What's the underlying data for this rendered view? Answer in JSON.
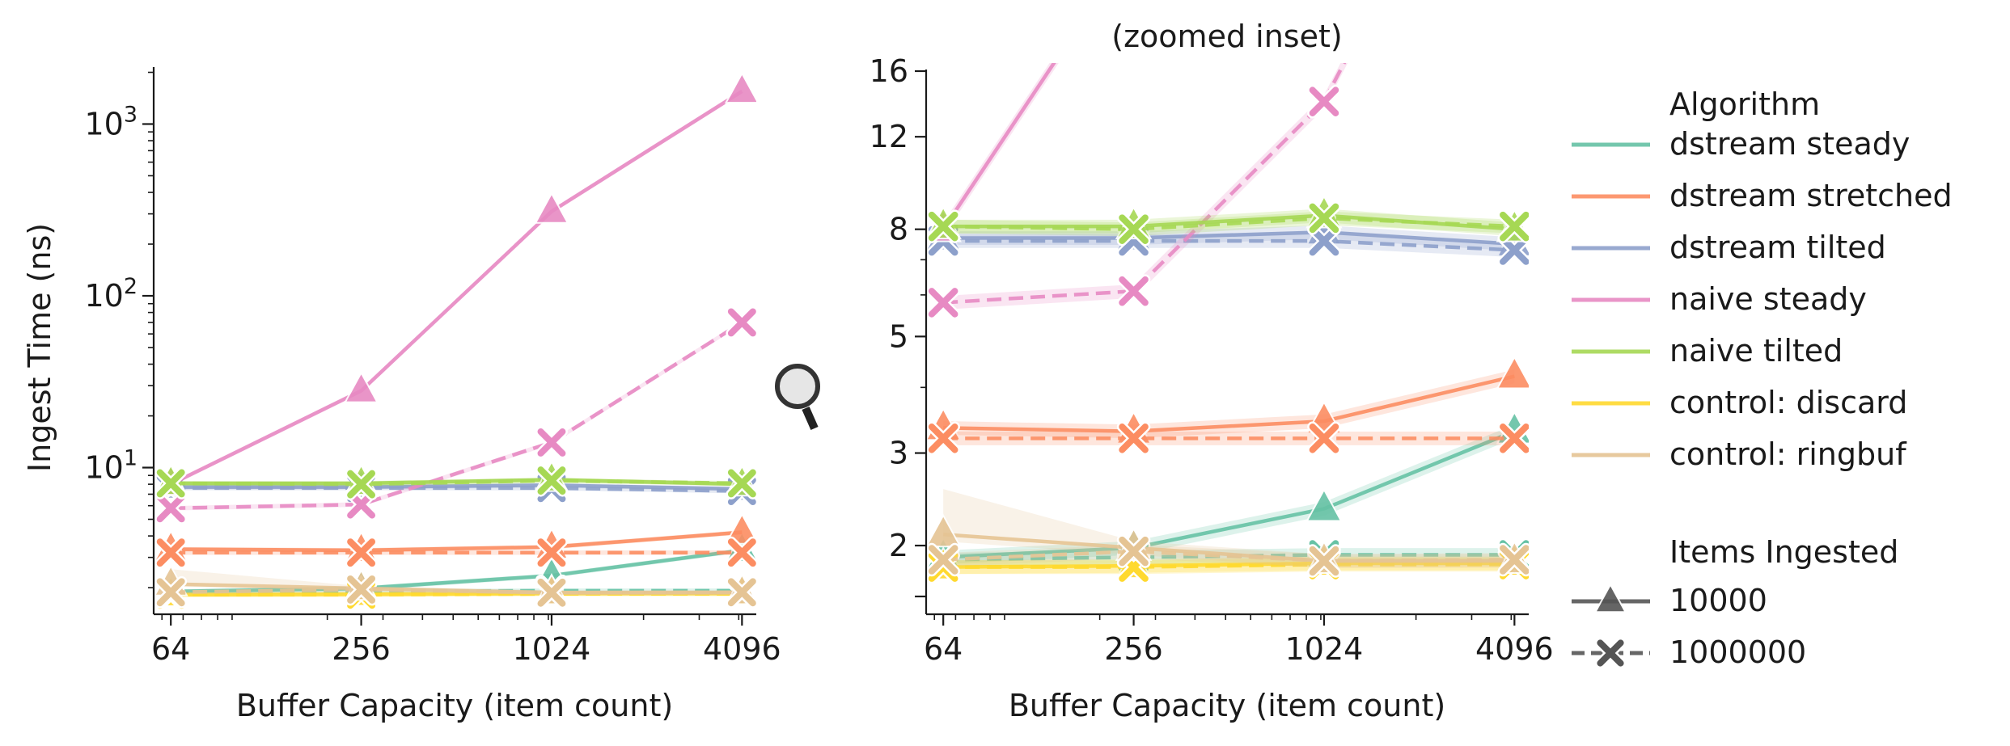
{
  "chart_data": [
    {
      "type": "line",
      "panel": "main",
      "title": "",
      "xlabel": "Buffer Capacity (item count)",
      "ylabel": "Ingest Time (ns)",
      "xscale": "log2",
      "yscale": "log10",
      "x": [
        64,
        256,
        1024,
        4096
      ],
      "x_tick_labels": [
        "64",
        "256",
        "1024",
        "4096"
      ],
      "y_tick_labels": [
        {
          "value": 10,
          "base": "10",
          "exp": "1"
        },
        {
          "value": 100,
          "base": "10",
          "exp": "2"
        },
        {
          "value": 1000,
          "base": "10",
          "exp": "3"
        }
      ],
      "ylim": [
        1.4,
        2100
      ],
      "series": [
        {
          "name": "dstream steady",
          "items": "10000",
          "values": [
            1.9,
            1.98,
            2.35,
            3.3
          ]
        },
        {
          "name": "dstream steady",
          "items": "1000000",
          "values": [
            1.88,
            1.9,
            1.92,
            1.92
          ]
        },
        {
          "name": "dstream stretched",
          "items": "10000",
          "values": [
            3.35,
            3.3,
            3.45,
            4.2
          ]
        },
        {
          "name": "dstream stretched",
          "items": "1000000",
          "values": [
            3.2,
            3.2,
            3.2,
            3.2
          ]
        },
        {
          "name": "dstream tilted",
          "items": "10000",
          "values": [
            7.7,
            7.7,
            7.9,
            7.5
          ]
        },
        {
          "name": "dstream tilted",
          "items": "1000000",
          "values": [
            7.6,
            7.6,
            7.6,
            7.3
          ]
        },
        {
          "name": "naive steady",
          "items": "10000",
          "values": [
            8.0,
            28.0,
            310,
            1550
          ]
        },
        {
          "name": "naive steady",
          "items": "1000000",
          "values": [
            5.8,
            6.1,
            14.0,
            70.0
          ]
        },
        {
          "name": "naive tilted",
          "items": "10000",
          "values": [
            8.1,
            8.1,
            8.5,
            8.0
          ]
        },
        {
          "name": "naive tilted",
          "items": "1000000",
          "values": [
            8.1,
            8.0,
            8.4,
            8.1
          ]
        },
        {
          "name": "control: discard",
          "items": "10000",
          "values": [
            1.82,
            1.83,
            1.85,
            1.85
          ]
        },
        {
          "name": "control: discard",
          "items": "1000000",
          "values": [
            1.82,
            1.82,
            1.84,
            1.84
          ]
        },
        {
          "name": "control: ringbuf",
          "items": "10000",
          "values": [
            2.1,
            1.98,
            1.87,
            1.87
          ]
        },
        {
          "name": "control: ringbuf",
          "items": "1000000",
          "values": [
            1.88,
            1.95,
            1.87,
            1.88
          ]
        }
      ]
    },
    {
      "type": "line",
      "panel": "inset",
      "title": "(zoomed inset)",
      "xlabel": "Buffer Capacity (item count)",
      "ylabel": "",
      "xscale": "log2",
      "yscale": "log",
      "x": [
        64,
        256,
        1024,
        4096
      ],
      "x_tick_labels": [
        "64",
        "256",
        "1024",
        "4096"
      ],
      "y_tick_labels": [
        "2",
        "3",
        "5",
        "8",
        "12",
        "16"
      ],
      "y_ticks": [
        2,
        3,
        5,
        8,
        12,
        16
      ],
      "ylim": [
        1.48,
        16
      ],
      "series_ref": "main"
    }
  ],
  "legend": {
    "position": "right",
    "algorithm_title": "Algorithm",
    "algorithms": [
      {
        "name": "dstream steady",
        "color": "#66c2a5"
      },
      {
        "name": "dstream stretched",
        "color": "#fc8d62"
      },
      {
        "name": "dstream tilted",
        "color": "#8da0cb"
      },
      {
        "name": "naive steady",
        "color": "#e78ac3"
      },
      {
        "name": "naive tilted",
        "color": "#a6d854"
      },
      {
        "name": "control: discard",
        "color": "#ffd92f"
      },
      {
        "name": "control: ringbuf",
        "color": "#e5c494"
      }
    ],
    "items_title": "Items Ingested",
    "items": [
      {
        "label": "10000",
        "marker": "triangle",
        "dash": "solid"
      },
      {
        "label": "1000000",
        "marker": "x",
        "dash": "dashed"
      }
    ]
  },
  "zoom_icon": "magnifier-icon"
}
